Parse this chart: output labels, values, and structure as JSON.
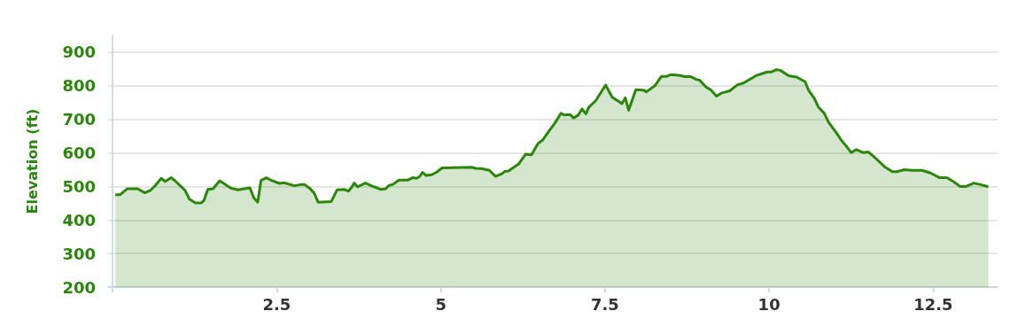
{
  "chart_data": {
    "type": "area",
    "ylabel": "Elevation (ft)",
    "color": "#2a870b",
    "x": [
      0.04,
      0.11,
      0.22,
      0.38,
      0.49,
      0.58,
      0.65,
      0.74,
      0.8,
      0.89,
      0.95,
      1.1,
      1.17,
      1.26,
      1.35,
      1.39,
      1.45,
      1.53,
      1.63,
      1.8,
      1.91,
      2.09,
      2.15,
      2.21,
      2.26,
      2.34,
      2.43,
      2.54,
      2.61,
      2.77,
      2.88,
      2.92,
      3.01,
      3.07,
      3.13,
      3.33,
      3.42,
      3.53,
      3.59,
      3.64,
      3.68,
      3.73,
      3.85,
      3.98,
      4.09,
      4.16,
      4.21,
      4.27,
      4.36,
      4.5,
      4.57,
      4.63,
      4.68,
      4.72,
      4.77,
      4.86,
      4.93,
      5.02,
      5.17,
      5.47,
      5.53,
      5.62,
      5.74,
      5.83,
      5.92,
      5.98,
      6.03,
      6.19,
      6.29,
      6.38,
      6.48,
      6.55,
      6.64,
      6.73,
      6.83,
      6.88,
      6.97,
      7.02,
      7.09,
      7.15,
      7.21,
      7.25,
      7.36,
      7.51,
      7.61,
      7.76,
      7.81,
      7.86,
      7.97,
      8.09,
      8.13,
      8.26,
      8.36,
      8.44,
      8.5,
      8.63,
      8.72,
      8.81,
      8.89,
      8.94,
      9.04,
      9.11,
      9.2,
      9.27,
      9.4,
      9.52,
      9.61,
      9.81,
      9.97,
      10.03,
      10.11,
      10.17,
      10.3,
      10.42,
      10.55,
      10.6,
      10.69,
      10.75,
      10.84,
      10.91,
      11.02,
      11.1,
      11.18,
      11.25,
      11.33,
      11.43,
      11.51,
      11.64,
      11.77,
      11.88,
      11.95,
      12.06,
      12.19,
      12.33,
      12.46,
      12.6,
      12.71,
      12.82,
      12.91,
      13.0,
      13.12,
      13.21,
      13.34
    ],
    "values": [
      475,
      475,
      493,
      493,
      481,
      489,
      503,
      524,
      515,
      526,
      517,
      489,
      462,
      451,
      451,
      458,
      491,
      493,
      517,
      495,
      490,
      496,
      466,
      453,
      518,
      526,
      517,
      509,
      511,
      502,
      506,
      506,
      493,
      480,
      453,
      455,
      490,
      491,
      486,
      497,
      510,
      499,
      510,
      499,
      491,
      493,
      503,
      506,
      519,
      519,
      526,
      524,
      530,
      542,
      533,
      535,
      542,
      555,
      556,
      557,
      554,
      553,
      548,
      530,
      537,
      545,
      546,
      568,
      596,
      594,
      628,
      638,
      663,
      687,
      718,
      713,
      714,
      704,
      712,
      731,
      716,
      735,
      756,
      802,
      766,
      747,
      764,
      727,
      788,
      787,
      782,
      800,
      828,
      828,
      833,
      831,
      827,
      827,
      819,
      817,
      796,
      788,
      769,
      778,
      785,
      803,
      808,
      831,
      841,
      841,
      848,
      846,
      830,
      826,
      812,
      787,
      762,
      737,
      718,
      690,
      661,
      638,
      619,
      601,
      610,
      601,
      603,
      581,
      557,
      544,
      544,
      550,
      548,
      548,
      540,
      526,
      526,
      513,
      500,
      500,
      510,
      506,
      499
    ],
    "xlim": [
      -0.07,
      13.48
    ],
    "ylim": [
      200,
      950
    ],
    "xticks": [
      {
        "value": 0,
        "label": null
      },
      2.5,
      5,
      7.5,
      10,
      12.5
    ],
    "yticks": [
      200,
      300,
      400,
      500,
      600,
      700,
      800,
      900
    ],
    "grid": "y",
    "marker": "none"
  }
}
